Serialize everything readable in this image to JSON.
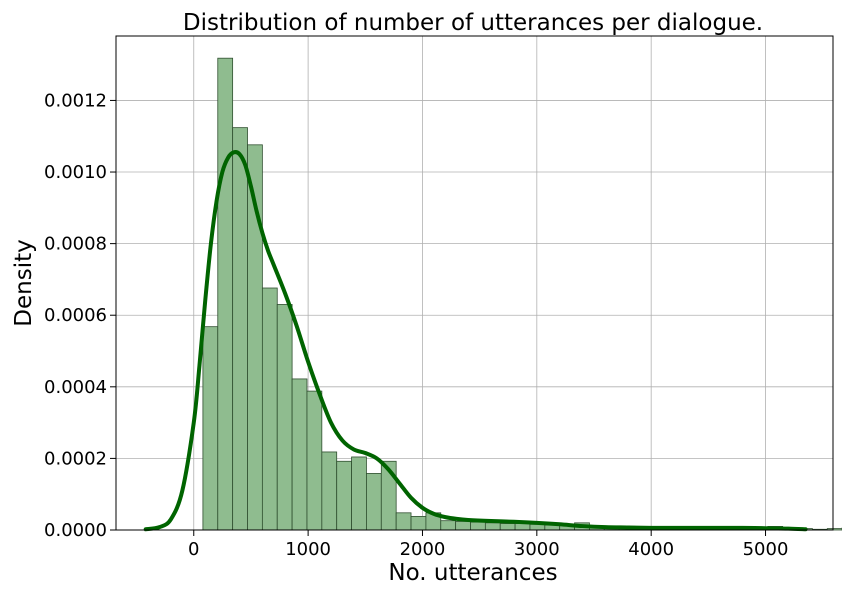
{
  "chart_data": {
    "type": "bar",
    "title": "Distribution of number of utterances per dialogue.",
    "xlabel": "No. utterances",
    "ylabel": "Density",
    "xlim": [
      -680,
      5590
    ],
    "ylim": [
      0,
      0.00138
    ],
    "grid": true,
    "x_ticks": [
      0,
      1000,
      2000,
      3000,
      4000,
      5000
    ],
    "y_ticks": [
      0.0,
      0.0002,
      0.0004,
      0.0006,
      0.0008,
      0.001,
      0.0012
    ],
    "x_tick_labels": [
      "0",
      "1000",
      "2000",
      "3000",
      "4000",
      "5000"
    ],
    "y_tick_labels": [
      "0.0000",
      "0.0002",
      "0.0004",
      "0.0006",
      "0.0008",
      "0.0010",
      "0.0012"
    ],
    "bar_color": "#8fbc8f",
    "kde_color": "#006400",
    "bins": {
      "start": 80,
      "width": 130,
      "densities": [
        0.000568,
        0.001318,
        0.001124,
        0.001076,
        0.000676,
        0.00063,
        0.000422,
        0.000388,
        0.000218,
        0.000192,
        0.000204,
        0.000158,
        0.000192,
        4.8e-05,
        3.8e-05,
        4.8e-05,
        2.6e-05,
        2.4e-05,
        2.2e-05,
        2e-05,
        1.8e-05,
        1.8e-05,
        1.6e-05,
        1.4e-05,
        1.6e-05,
        2e-05,
        8e-06,
        6e-06,
        4e-06,
        4e-06,
        6e-06,
        6e-06,
        1e-05,
        4e-06,
        4e-06,
        4e-06,
        6e-06,
        4e-06,
        1e-05,
        4e-06,
        4e-06,
        2e-06,
        4e-06,
        6e-06,
        4e-06,
        2e-06
      ]
    },
    "kde": {
      "x": [
        -420,
        -300,
        -200,
        -100,
        0,
        50,
        100,
        150,
        200,
        250,
        300,
        350,
        400,
        450,
        500,
        550,
        600,
        650,
        700,
        800,
        900,
        1000,
        1100,
        1200,
        1300,
        1400,
        1500,
        1600,
        1700,
        1800,
        1900,
        2000,
        2100,
        2200,
        2300,
        2400,
        2600,
        2800,
        3000,
        3200,
        3400,
        3600,
        3800,
        4000,
        4200,
        4400,
        4600,
        4800,
        5000,
        5200,
        5350
      ],
      "y": [
        2e-06,
        8e-06,
        3e-05,
        0.00011,
        0.0003,
        0.00046,
        0.00064,
        0.0008,
        0.00092,
        0.001,
        0.00104,
        0.001055,
        0.00105,
        0.00102,
        0.00096,
        0.00089,
        0.00083,
        0.00078,
        0.00074,
        0.00066,
        0.00057,
        0.00047,
        0.00038,
        0.0003,
        0.00025,
        0.000225,
        0.000215,
        0.0002,
        0.00017,
        0.00013,
        9e-05,
        6.2e-05,
        4.5e-05,
        3.6e-05,
        3.1e-05,
        2.8e-05,
        2.5e-05,
        2.3e-05,
        2e-05,
        1.6e-05,
        1.1e-05,
        8e-06,
        7e-06,
        6e-06,
        6e-06,
        6e-06,
        6e-06,
        6e-06,
        5e-06,
        4e-06,
        2e-06
      ]
    }
  }
}
